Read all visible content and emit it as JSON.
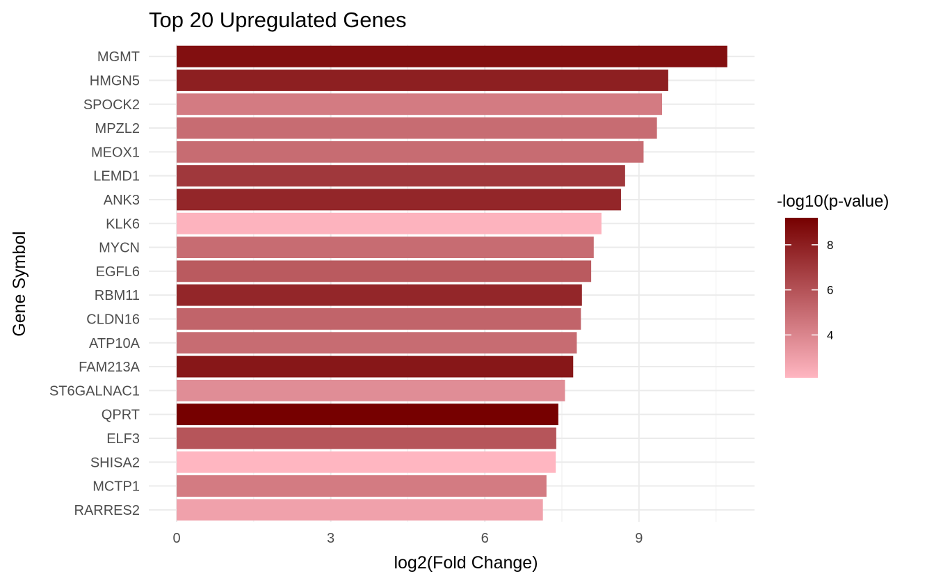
{
  "chart_data": {
    "type": "bar",
    "orientation": "horizontal",
    "title": "Top 20 Upregulated Genes",
    "xlabel": "log2(Fold Change)",
    "ylabel": "Gene Symbol",
    "xlim": [
      0,
      11.25
    ],
    "xticks": [
      "0",
      "3",
      "6",
      "9"
    ],
    "grid": true,
    "categories": [
      "MGMT",
      "HMGN5",
      "SPOCK2",
      "MPZL2",
      "MEOX1",
      "LEMD1",
      "ANK3",
      "KLK6",
      "MYCN",
      "EGFL6",
      "RBM11",
      "CLDN16",
      "ATP10A",
      "FAM213A",
      "ST6GALNAC1",
      "QPRT",
      "ELF3",
      "SHISA2",
      "MCTP1",
      "RARRES2"
    ],
    "values": [
      10.72,
      9.57,
      9.45,
      9.35,
      9.09,
      8.73,
      8.65,
      8.27,
      8.12,
      8.07,
      7.89,
      7.87,
      7.79,
      7.72,
      7.56,
      7.43,
      7.39,
      7.38,
      7.2,
      7.13
    ],
    "neg_log10_pvalue": [
      8.6,
      8.0,
      4.4,
      5.0,
      5.0,
      7.0,
      7.7,
      2.2,
      5.0,
      5.7,
      7.7,
      5.3,
      5.0,
      8.3,
      3.7,
      9.2,
      5.9,
      2.1,
      4.4,
      2.9
    ],
    "legend": {
      "title": "-log10(p-value)",
      "placement": "right",
      "ticks": [
        "4",
        "6",
        "8"
      ],
      "range": [
        2.1,
        9.2
      ],
      "color_low": "#FFB6C1",
      "color_high": "#760000"
    }
  }
}
